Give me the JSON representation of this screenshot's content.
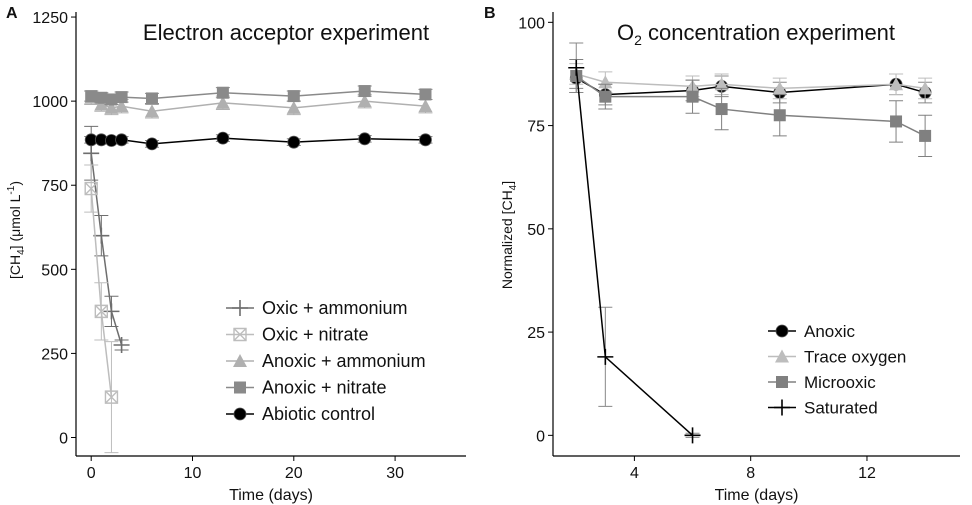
{
  "chart_data": [
    {
      "panel_label": "A",
      "type": "line",
      "title": "Electron acceptor experiment",
      "xlabel": "Time (days)",
      "ylabel": {
        "pre": "[CH",
        "sub": "4",
        "mid": "] (μmol L",
        "sup": "-1",
        "post": ")"
      },
      "xlim": [
        -1.5,
        37
      ],
      "ylim": [
        -55,
        1265
      ],
      "xticks": [
        0,
        10,
        20,
        30
      ],
      "yticks": [
        0,
        250,
        500,
        750,
        1000,
        1250
      ],
      "legend_position": "bottom-right",
      "series": [
        {
          "name": "Oxic + ammonium",
          "marker": "plus",
          "color": "#6e6e6e",
          "x": [
            0,
            1,
            2,
            3
          ],
          "y": [
            845,
            600,
            375,
            275
          ],
          "err": [
            80,
            60,
            45,
            15
          ]
        },
        {
          "name": "Oxic + nitrate",
          "marker": "boxx",
          "color": "#bdbdbd",
          "x": [
            0,
            1,
            2
          ],
          "y": [
            740,
            375,
            120
          ],
          "err": [
            70,
            85,
            165
          ]
        },
        {
          "name": "Anoxic + ammonium",
          "marker": "triangle",
          "color": "#b0b0b0",
          "x": [
            0,
            1,
            2,
            3,
            6,
            13,
            20,
            27,
            33
          ],
          "y": [
            1010,
            990,
            980,
            985,
            970,
            995,
            980,
            1000,
            985
          ],
          "err": [
            20,
            20,
            20,
            20,
            20,
            20,
            20,
            20,
            20
          ]
        },
        {
          "name": "Anoxic + nitrate",
          "marker": "square",
          "color": "#8a8a8a",
          "x": [
            0,
            1,
            2,
            3,
            6,
            13,
            20,
            27,
            33
          ],
          "y": [
            1015,
            1010,
            1005,
            1012,
            1008,
            1025,
            1015,
            1030,
            1020
          ],
          "err": [
            15,
            15,
            15,
            15,
            15,
            15,
            15,
            15,
            15
          ]
        },
        {
          "name": "Abiotic control",
          "marker": "circle",
          "color": "#000000",
          "x": [
            0,
            1,
            2,
            3,
            6,
            13,
            20,
            27,
            33
          ],
          "y": [
            885,
            885,
            883,
            885,
            873,
            890,
            878,
            888,
            885
          ],
          "err": [
            10,
            10,
            10,
            10,
            10,
            10,
            10,
            10,
            10
          ]
        }
      ]
    },
    {
      "panel_label": "B",
      "type": "line",
      "title": {
        "pre": "O",
        "sub": "2",
        "post": " concentration experiment"
      },
      "xlabel": "Time (days)",
      "ylabel": {
        "pre": "Normalized [CH",
        "sub": "4",
        "post": "]"
      },
      "xlim": [
        1.2,
        15.2
      ],
      "ylim": [
        -5,
        102.5
      ],
      "xticks": [
        4,
        8,
        12
      ],
      "yticks": [
        0,
        25,
        50,
        75,
        100
      ],
      "legend_position": "bottom-right",
      "series": [
        {
          "name": "Anoxic",
          "marker": "circle",
          "color": "#000000",
          "x": [
            2,
            3,
            6,
            7,
            9,
            13,
            14
          ],
          "y": [
            86.5,
            82.5,
            83.5,
            84.5,
            83.0,
            85.0,
            83.0
          ],
          "err": [
            2.5,
            2.5,
            2.5,
            2.5,
            2.5,
            2.5,
            2.5
          ]
        },
        {
          "name": "Trace oxygen",
          "marker": "triangle",
          "color": "#bdbdbd",
          "x": [
            2,
            3,
            6,
            7,
            9,
            13,
            14
          ],
          "y": [
            87.5,
            85.5,
            84.5,
            85.0,
            84.0,
            85.0,
            84.0
          ],
          "err": [
            2.5,
            2.5,
            2.5,
            2.5,
            2.5,
            2.5,
            2.5
          ]
        },
        {
          "name": "Microoxic",
          "marker": "square",
          "color": "#808080",
          "x": [
            2,
            3,
            6,
            7,
            9,
            13,
            14
          ],
          "y": [
            87.0,
            82.0,
            82.0,
            79.0,
            77.5,
            76.0,
            72.5
          ],
          "err": [
            4,
            3,
            4,
            5,
            5,
            5,
            5
          ]
        },
        {
          "name": "Saturated",
          "marker": "plus",
          "color": "#000000",
          "x": [
            2,
            3,
            6
          ],
          "y": [
            89.0,
            19.0,
            0.0
          ],
          "err": [
            6,
            12,
            0.5
          ]
        }
      ]
    }
  ]
}
